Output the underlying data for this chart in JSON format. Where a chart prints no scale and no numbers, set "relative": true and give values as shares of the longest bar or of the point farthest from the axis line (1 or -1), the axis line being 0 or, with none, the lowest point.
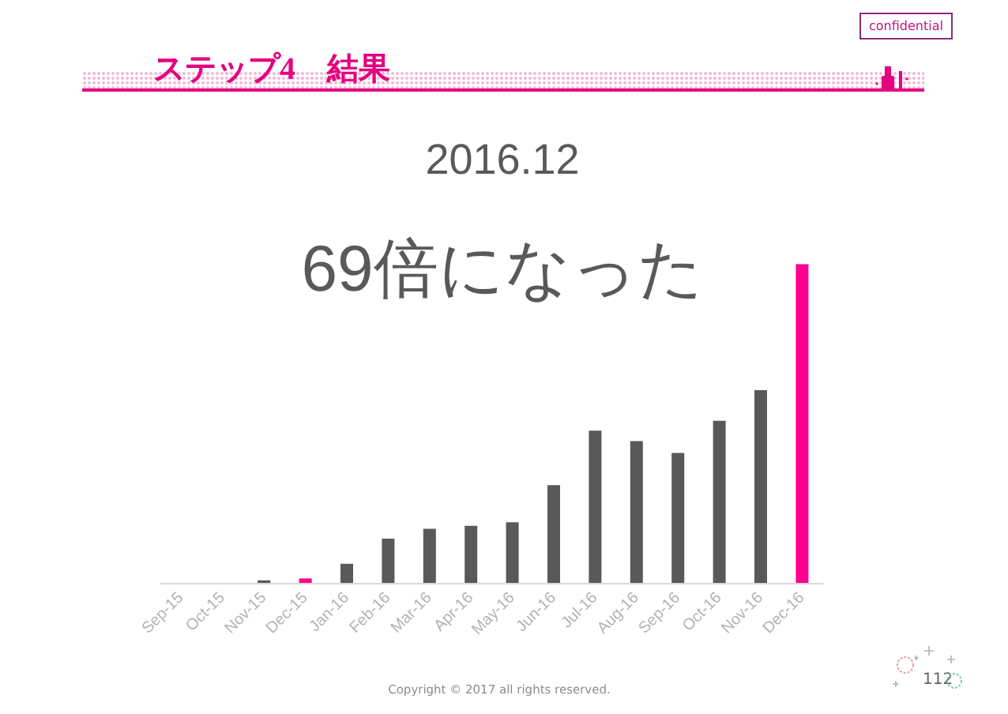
{
  "chart_data": {
    "type": "bar",
    "title": "2016.12",
    "subtitle": "69倍になった",
    "annotations": [
      "ステップ4　結果",
      "confidential",
      "Copyright © 2017 all rights reserved.",
      "112"
    ],
    "categories": [
      "Sep-15",
      "Oct-15",
      "Nov-15",
      "Dec-15",
      "Jan-16",
      "Feb-16",
      "Mar-16",
      "Apr-16",
      "May-16",
      "Jun-16",
      "Jul-16",
      "Aug-16",
      "Sep-16",
      "Oct-16",
      "Nov-16",
      "Dec-16"
    ],
    "values": [
      0,
      0,
      0.008,
      0.014,
      0.06,
      0.139,
      0.17,
      0.179,
      0.19,
      0.307,
      0.478,
      0.445,
      0.408,
      0.509,
      0.605,
      1
    ],
    "colors": [
      "#595959",
      "#595959",
      "#595959",
      "#ff0090",
      "#595959",
      "#595959",
      "#595959",
      "#595959",
      "#595959",
      "#595959",
      "#595959",
      "#595959",
      "#595959",
      "#595959",
      "#595959",
      "#ff0090"
    ],
    "relative": true
  }
}
